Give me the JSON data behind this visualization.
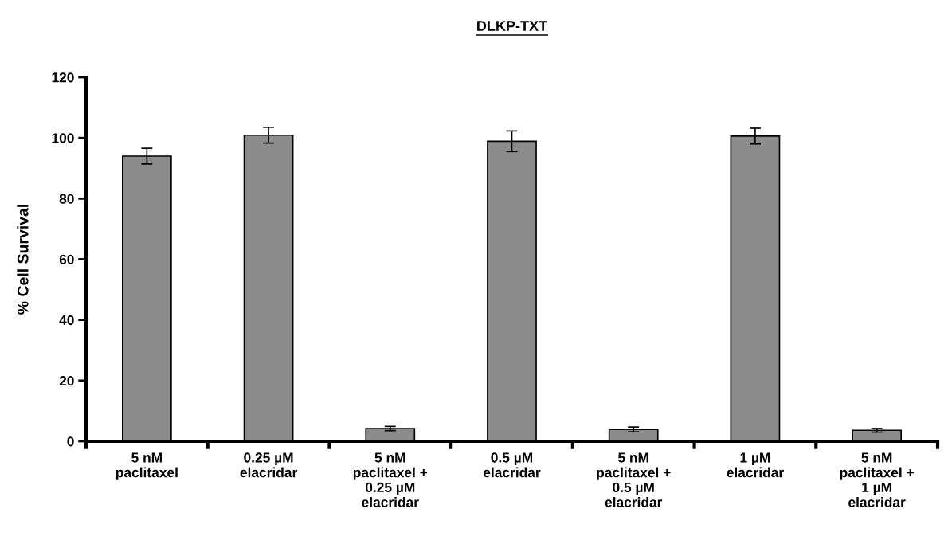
{
  "chart_data": {
    "type": "bar",
    "title": "DLKP-TXT",
    "ylabel": "% Cell Survival",
    "categories": [
      "5 nM\npaclitaxel",
      "0.25 µM\nelacridar",
      "5 nM\npaclitaxel +\n0.25 µM\nelacridar",
      "0.5 µM\nelacridar",
      "5 nM\npaclitaxel +\n0.5 µM\nelacridar",
      "1 µM\nelacridar",
      "5 nM\npaclitaxel +\n1 µM\nelacridar"
    ],
    "values": [
      94,
      100.9,
      4.2,
      98.9,
      3.9,
      100.6,
      3.6
    ],
    "errors": [
      2.6,
      2.6,
      0.7,
      3.4,
      0.8,
      2.6,
      0.6
    ],
    "color": "#8c8c8c",
    "ylim": [
      0,
      120
    ],
    "yticks": [
      0,
      20,
      40,
      60,
      80,
      100,
      120
    ],
    "grid": false,
    "legend": false
  }
}
